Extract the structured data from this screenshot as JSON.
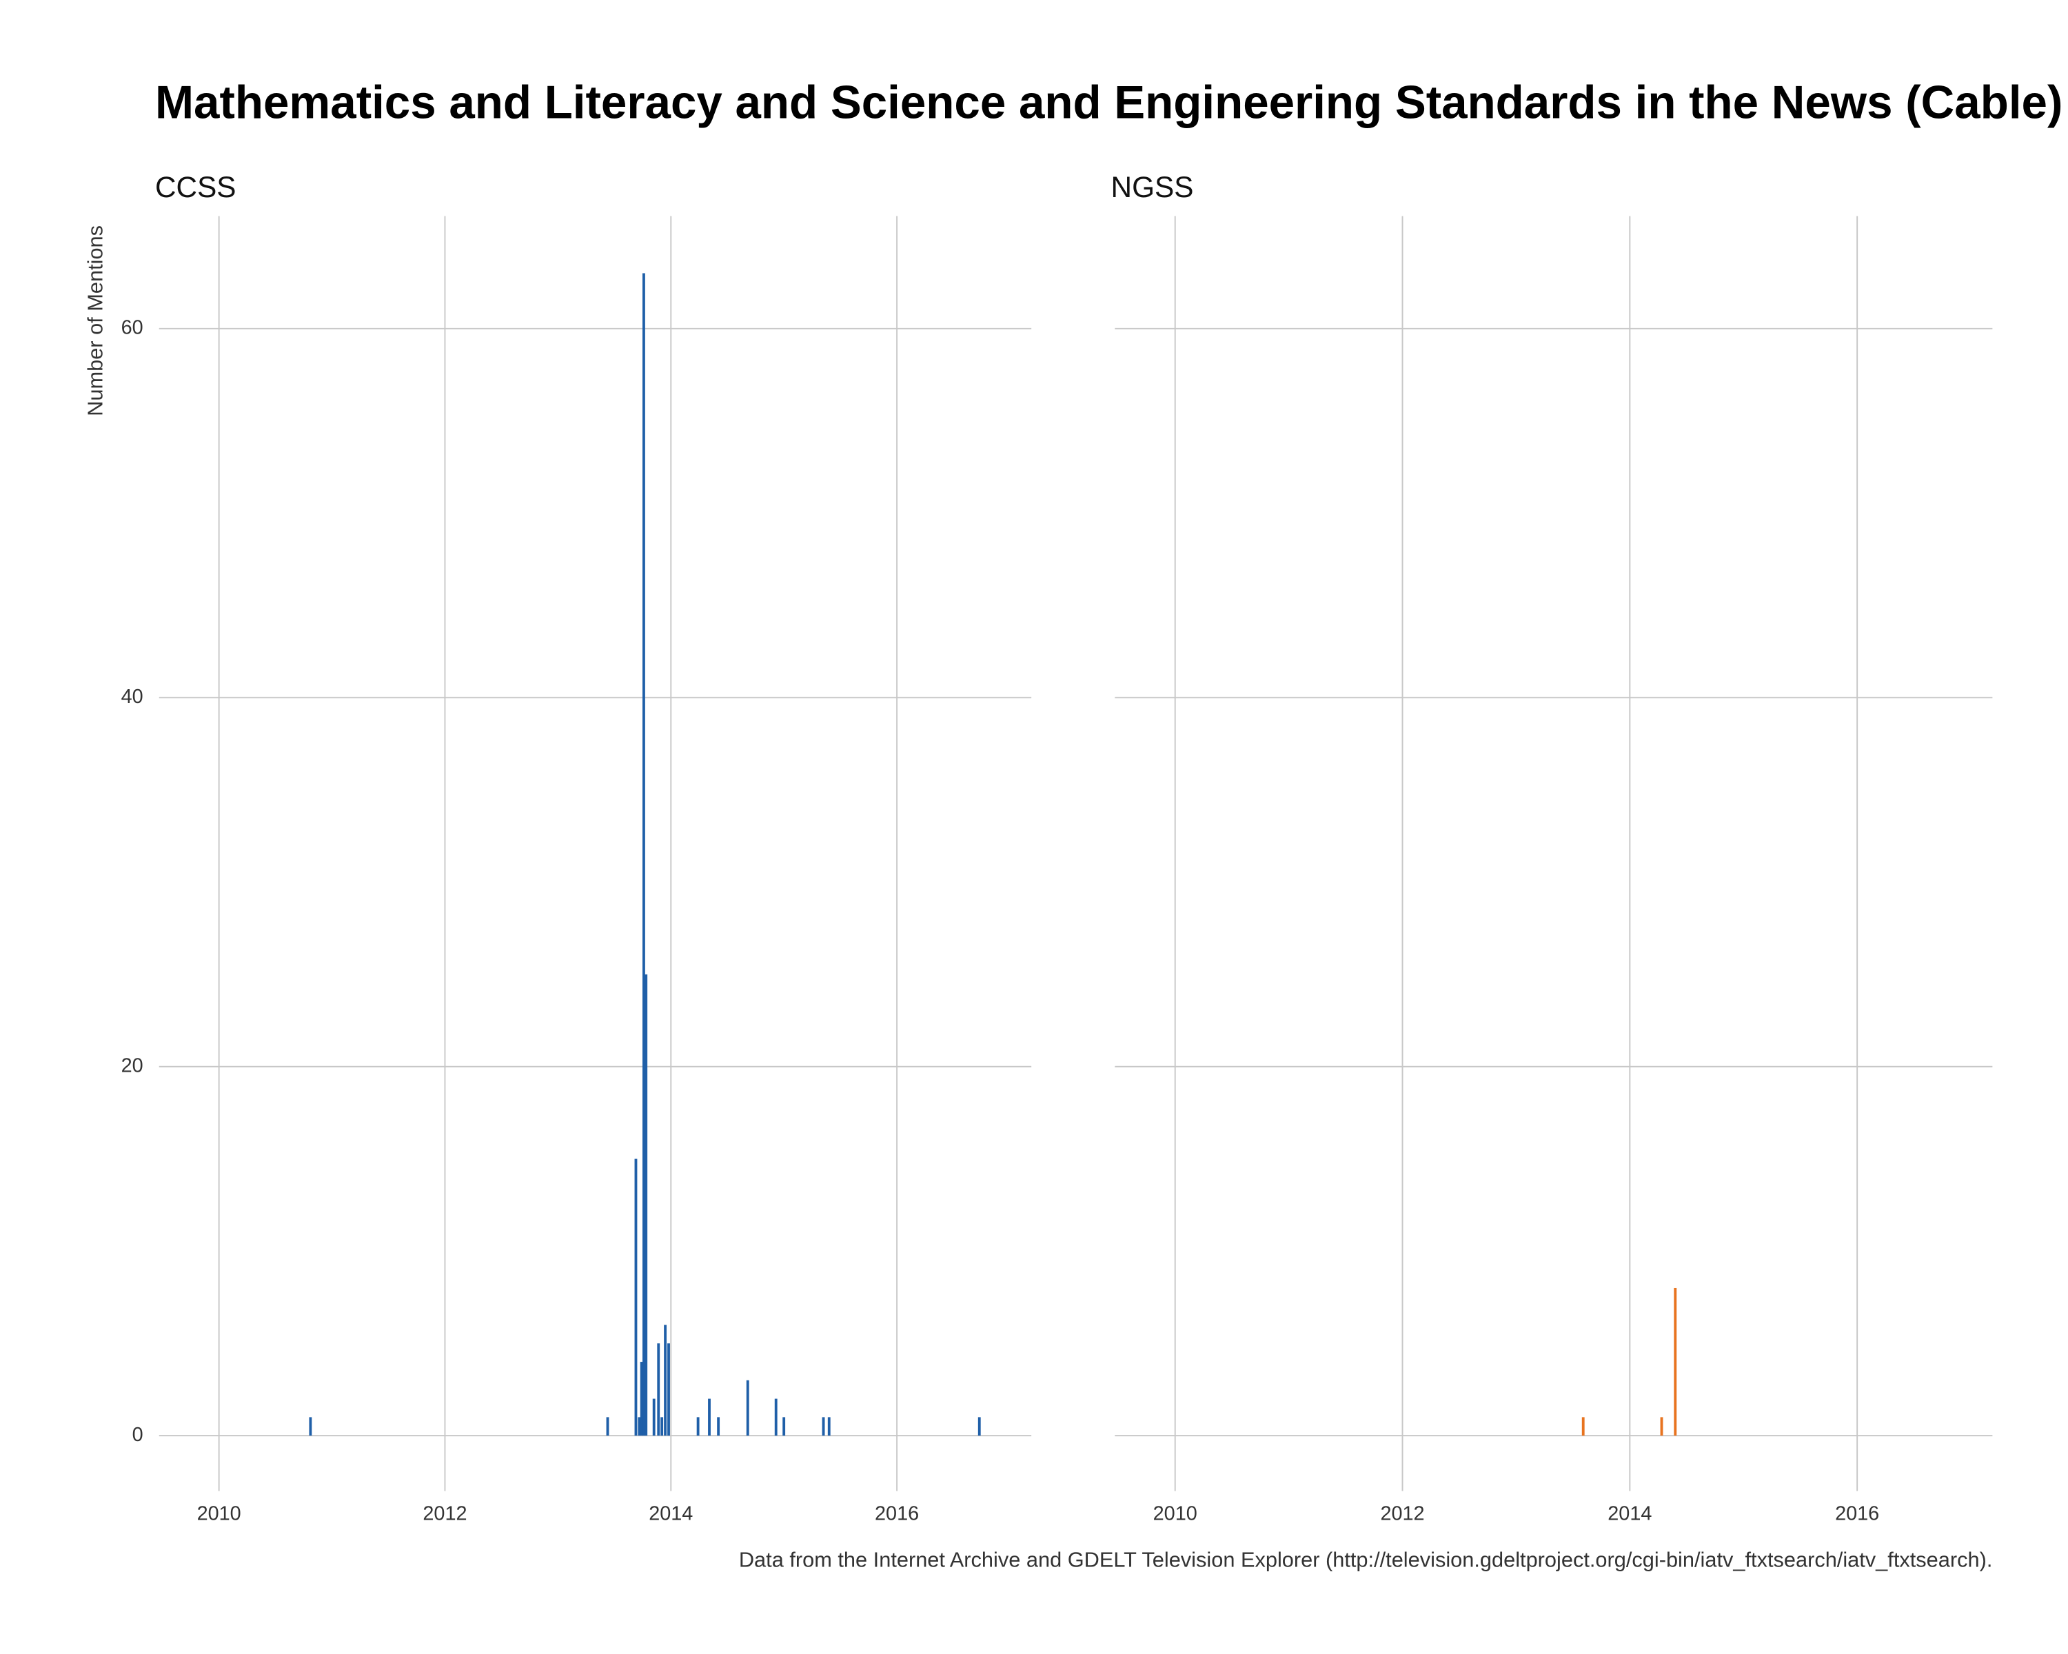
{
  "title": "Mathematics and Literacy and Science and Engineering Standards in the News (Cable)",
  "caption": "Data from the Internet Archive and GDELT Television Explorer (http://television.gdeltproject.org/cgi-bin/iatv_ftxtsearch/iatv_ftxtsearch).",
  "chart_data": [
    {
      "type": "bar",
      "title": "CCSS",
      "y_label": "Number of Mentions",
      "color": "#1f5fa8",
      "grid": true,
      "x": [
        2010.81,
        2013.44,
        2013.69,
        2013.72,
        2013.74,
        2013.76,
        2013.78,
        2013.85,
        2013.89,
        2013.92,
        2013.95,
        2013.98,
        2014.24,
        2014.34,
        2014.42,
        2014.68,
        2014.93,
        2015.0,
        2015.35,
        2015.4,
        2016.73
      ],
      "values": [
        1,
        1,
        15,
        1,
        4,
        63,
        25,
        2,
        5,
        1,
        6,
        5,
        1,
        2,
        1,
        3,
        2,
        1,
        1,
        1,
        1
      ],
      "xlim": [
        2009.47,
        2017.19
      ],
      "ylim": [
        -3.0,
        66.1
      ],
      "xticks": [
        2010,
        2012,
        2014,
        2016
      ],
      "yticks": [
        0,
        20,
        40,
        60
      ]
    },
    {
      "type": "bar",
      "title": "NGSS",
      "color": "#e8731f",
      "grid": true,
      "x": [
        2013.59,
        2014.28,
        2014.4
      ],
      "values": [
        1,
        1,
        8
      ],
      "xlim": [
        2009.47,
        2017.19
      ],
      "ylim": [
        -3.0,
        66.1
      ],
      "xticks": [
        2010,
        2012,
        2014,
        2016
      ],
      "yticks": [
        0,
        20,
        40,
        60
      ]
    }
  ]
}
